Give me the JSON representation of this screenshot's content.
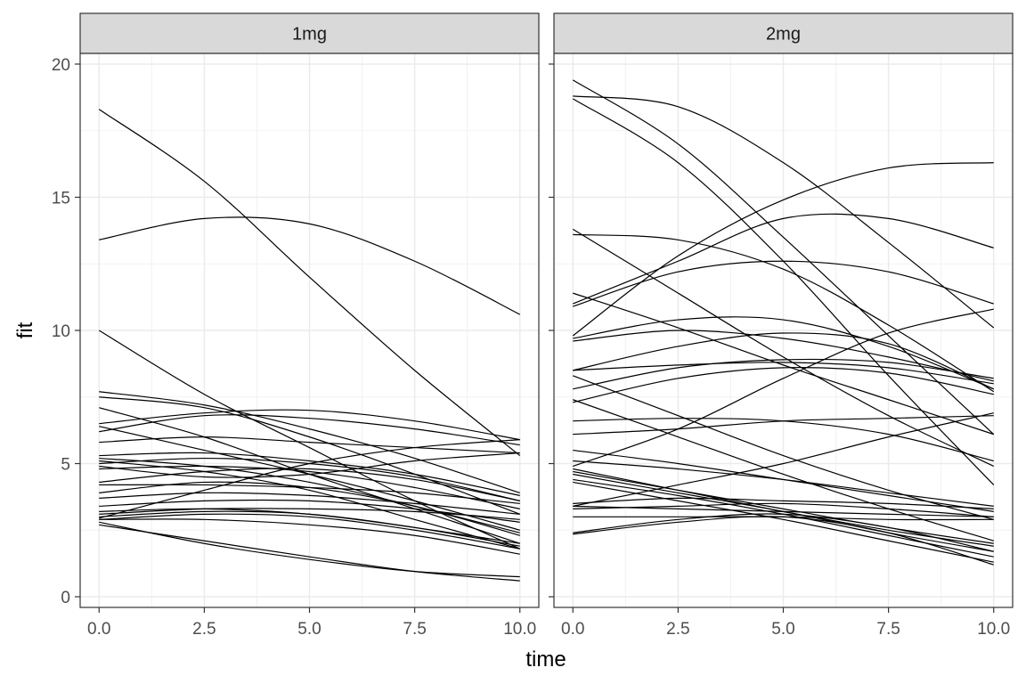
{
  "chart_data": {
    "type": "line",
    "xlabel": "time",
    "ylabel": "fit",
    "xlim": [
      -0.45,
      10.45
    ],
    "ylim": [
      -0.4,
      20.4
    ],
    "x_ticks": [
      0,
      2.5,
      5,
      7.5,
      10
    ],
    "x_tick_labels": [
      "0.0",
      "2.5",
      "5.0",
      "7.5",
      "10.0"
    ],
    "y_ticks": [
      0,
      5,
      10,
      15,
      20
    ],
    "y_tick_labels": [
      "0",
      "5",
      "10",
      "15",
      "20"
    ],
    "grid": true,
    "legend": "none",
    "line_color": "#000000",
    "strip_fill": "#d9d9d9",
    "x": [
      0,
      2.5,
      5,
      7.5,
      10
    ],
    "panels": [
      {
        "label": "1mg",
        "series": [
          {
            "values": [
              18.3,
              15.6,
              12.0,
              8.5,
              5.3
            ]
          },
          {
            "values": [
              13.4,
              14.2,
              14.0,
              12.6,
              10.6
            ]
          },
          {
            "values": [
              10.0,
              7.6,
              5.6,
              3.6,
              1.8
            ]
          },
          {
            "values": [
              7.7,
              7.2,
              6.3,
              5.2,
              3.9
            ]
          },
          {
            "values": [
              7.5,
              7.1,
              6.0,
              4.6,
              3.1
            ]
          },
          {
            "values": [
              7.1,
              6.0,
              4.6,
              3.3,
              2.0
            ]
          },
          {
            "values": [
              6.5,
              6.9,
              7.0,
              6.6,
              5.9
            ]
          },
          {
            "values": [
              6.2,
              6.8,
              6.7,
              6.3,
              5.7
            ]
          },
          {
            "values": [
              6.4,
              5.5,
              4.6,
              3.6,
              2.5
            ]
          },
          {
            "values": [
              5.8,
              6.0,
              5.8,
              5.6,
              5.4
            ]
          },
          {
            "values": [
              5.3,
              5.4,
              5.1,
              4.6,
              3.8
            ]
          },
          {
            "values": [
              5.2,
              4.9,
              4.3,
              3.4,
              2.4
            ]
          },
          {
            "values": [
              5.0,
              5.2,
              5.0,
              4.5,
              3.6
            ]
          },
          {
            "values": [
              5.1,
              4.7,
              4.0,
              2.9,
              1.8
            ]
          },
          {
            "values": [
              4.9,
              4.5,
              4.6,
              5.1,
              5.4
            ]
          },
          {
            "values": [
              4.8,
              4.9,
              4.7,
              4.1,
              3.3
            ]
          },
          {
            "values": [
              4.3,
              4.7,
              4.8,
              4.4,
              3.6
            ]
          },
          {
            "values": [
              4.2,
              4.2,
              4.1,
              3.9,
              3.5
            ]
          },
          {
            "values": [
              3.9,
              4.3,
              4.1,
              3.4,
              2.3
            ]
          },
          {
            "values": [
              3.7,
              3.9,
              3.8,
              3.5,
              3.1
            ]
          },
          {
            "values": [
              3.4,
              3.6,
              3.6,
              3.3,
              2.8
            ]
          },
          {
            "values": [
              3.2,
              3.3,
              3.1,
              2.6,
              2.0
            ]
          },
          {
            "values": [
              3.1,
              3.3,
              3.3,
              3.2,
              2.9
            ]
          },
          {
            "values": [
              3.0,
              3.2,
              3.1,
              2.6,
              1.9
            ]
          },
          {
            "values": [
              2.9,
              3.1,
              3.0,
              2.5,
              1.8
            ]
          },
          {
            "values": [
              2.95,
              4.0,
              5.0,
              5.6,
              5.9
            ]
          },
          {
            "values": [
              2.9,
              2.9,
              2.7,
              2.3,
              1.6
            ]
          },
          {
            "values": [
              2.8,
              2.0,
              1.4,
              0.95,
              0.75
            ]
          },
          {
            "values": [
              2.7,
              2.1,
              1.5,
              0.95,
              0.6
            ]
          }
        ]
      },
      {
        "label": "2mg",
        "series": [
          {
            "values": [
              19.4,
              17.0,
              13.5,
              9.8,
              6.1
            ]
          },
          {
            "values": [
              18.8,
              18.4,
              16.3,
              13.3,
              10.1
            ]
          },
          {
            "values": [
              18.7,
              16.3,
              12.6,
              8.3,
              4.2
            ]
          },
          {
            "values": [
              13.8,
              11.4,
              9.0,
              6.8,
              4.9
            ]
          },
          {
            "values": [
              13.6,
              13.4,
              12.3,
              10.2,
              7.7
            ]
          },
          {
            "values": [
              11.4,
              10.1,
              8.7,
              7.4,
              6.1
            ]
          },
          {
            "values": [
              11.0,
              12.6,
              14.2,
              14.2,
              13.1
            ]
          },
          {
            "values": [
              10.9,
              12.2,
              12.6,
              12.2,
              11.0
            ]
          },
          {
            "values": [
              9.8,
              12.8,
              14.9,
              16.1,
              16.3
            ]
          },
          {
            "values": [
              9.7,
              10.4,
              10.4,
              9.4,
              7.8
            ]
          },
          {
            "values": [
              9.6,
              10.0,
              9.7,
              9.0,
              8.1
            ]
          },
          {
            "values": [
              8.5,
              8.7,
              8.8,
              8.6,
              8.0
            ]
          },
          {
            "values": [
              8.5,
              9.4,
              9.9,
              9.5,
              7.8
            ]
          },
          {
            "values": [
              8.3,
              6.8,
              5.3,
              4.0,
              2.9
            ]
          },
          {
            "values": [
              7.8,
              8.6,
              8.9,
              8.8,
              8.2
            ]
          },
          {
            "values": [
              7.4,
              6.0,
              4.6,
              3.3,
              2.1
            ]
          },
          {
            "values": [
              7.3,
              8.2,
              8.6,
              8.4,
              7.6
            ]
          },
          {
            "values": [
              6.6,
              6.7,
              6.6,
              6.1,
              5.1
            ]
          },
          {
            "values": [
              6.1,
              6.3,
              6.6,
              6.7,
              6.8
            ]
          },
          {
            "values": [
              5.5,
              5.0,
              4.4,
              3.8,
              3.2
            ]
          },
          {
            "values": [
              5.1,
              4.8,
              4.4,
              3.9,
              3.4
            ]
          },
          {
            "values": [
              4.9,
              6.3,
              8.2,
              9.9,
              10.8
            ]
          },
          {
            "values": [
              4.8,
              4.0,
              3.2,
              2.5,
              1.9
            ]
          },
          {
            "values": [
              4.7,
              4.0,
              3.3,
              2.6,
              2.0
            ]
          },
          {
            "values": [
              4.6,
              3.9,
              3.2,
              2.4,
              1.7
            ]
          },
          {
            "values": [
              4.4,
              3.8,
              3.1,
              2.3,
              1.5
            ]
          },
          {
            "values": [
              4.3,
              3.6,
              2.9,
              2.1,
              1.3
            ]
          },
          {
            "values": [
              3.5,
              3.7,
              3.6,
              3.5,
              3.3
            ]
          },
          {
            "values": [
              3.4,
              4.2,
              5.0,
              6.0,
              6.9
            ]
          },
          {
            "values": [
              3.4,
              3.3,
              3.2,
              3.1,
              3.0
            ]
          },
          {
            "values": [
              3.3,
              3.4,
              3.5,
              3.3,
              3.0
            ]
          },
          {
            "values": [
              3.0,
              3.0,
              3.0,
              2.9,
              2.9
            ]
          },
          {
            "values": [
              2.4,
              2.9,
              3.1,
              2.6,
              1.7
            ]
          },
          {
            "values": [
              2.35,
              2.8,
              3.0,
              2.4,
              1.2
            ]
          }
        ]
      }
    ]
  }
}
